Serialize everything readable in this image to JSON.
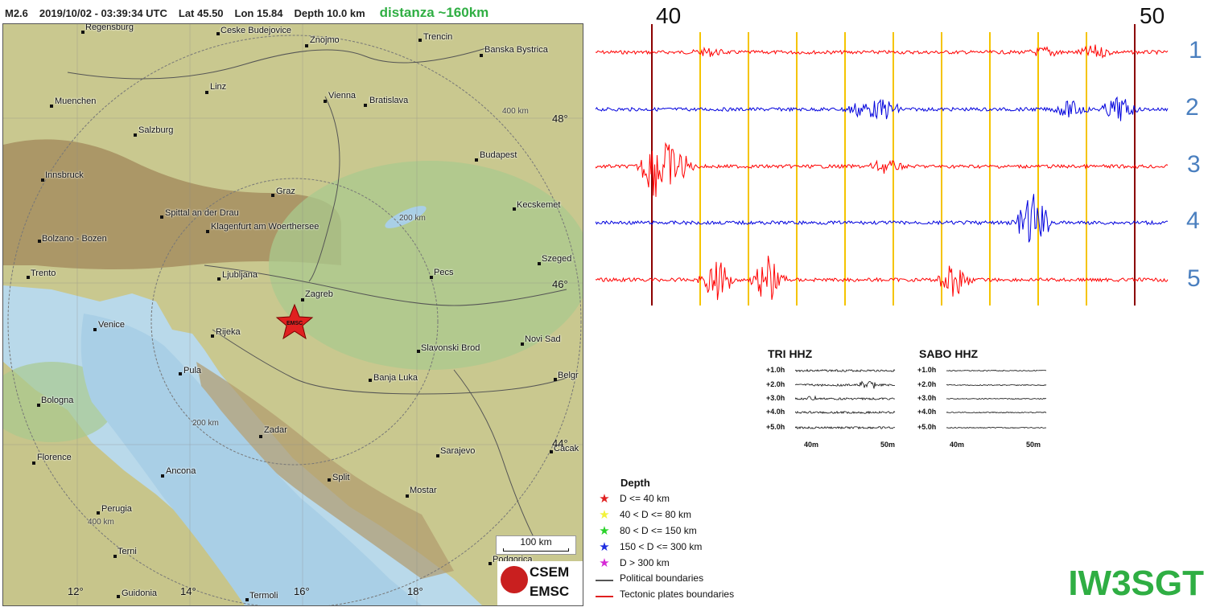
{
  "header": {
    "magnitude": "M2.6",
    "datetime": "2019/10/02 - 03:39:34 UTC",
    "lat": "Lat 45.50",
    "lon": "Lon  15.84",
    "depth": "Depth  10.0 km",
    "distance": "distanza ~160km"
  },
  "map": {
    "cities": [
      {
        "name": "Regensburg"
      },
      {
        "name": "Ceske Budejovice"
      },
      {
        "name": "Znojmo"
      },
      {
        "name": "Trencin"
      },
      {
        "name": "Banska Bystrica"
      },
      {
        "name": "Linz"
      },
      {
        "name": "Vienna"
      },
      {
        "name": "Bratislava"
      },
      {
        "name": "Muenchen"
      },
      {
        "name": "Salzburg"
      },
      {
        "name": "Budapest"
      },
      {
        "name": "Innsbruck"
      },
      {
        "name": "Graz"
      },
      {
        "name": "Kecskemet"
      },
      {
        "name": "Spittal an der Drau"
      },
      {
        "name": "Klagenfurt am Woerthersee"
      },
      {
        "name": "Bolzano - Bozen"
      },
      {
        "name": "Szeged"
      },
      {
        "name": "Trento"
      },
      {
        "name": "Ljubljana"
      },
      {
        "name": "Pecs"
      },
      {
        "name": "Zagreb"
      },
      {
        "name": "Venice"
      },
      {
        "name": "Rijeka"
      },
      {
        "name": "Novi Sad"
      },
      {
        "name": "Slavonski Brod"
      },
      {
        "name": "Pula"
      },
      {
        "name": "Banja Luka"
      },
      {
        "name": "Belgr"
      },
      {
        "name": "Bologna"
      },
      {
        "name": "Zadar"
      },
      {
        "name": "Sarajevo"
      },
      {
        "name": "Florence"
      },
      {
        "name": "Cacak"
      },
      {
        "name": "Ancona"
      },
      {
        "name": "Split"
      },
      {
        "name": "Mostar"
      },
      {
        "name": "Perugia"
      },
      {
        "name": "Terni"
      },
      {
        "name": "Podgorica"
      },
      {
        "name": "Guidonia"
      },
      {
        "name": "Termoli"
      }
    ],
    "lat_labels": [
      "48°",
      "46°",
      "44°"
    ],
    "lon_labels": [
      "12°",
      "14°",
      "16°",
      "18°"
    ],
    "ring_labels": [
      "400 km",
      "200 km",
      "200 km",
      "400 km"
    ],
    "epicenter_label": "EMSC",
    "scale": "100 km",
    "logo_top": "CSEM",
    "logo_bottom": "EMSC"
  },
  "seismogram": {
    "x_labels": [
      "40",
      "50"
    ],
    "trace_numbers": [
      "1",
      "2",
      "3",
      "4",
      "5"
    ],
    "colors": {
      "red": "#ff0000",
      "blue": "#0000dd",
      "marker": "#f5c400",
      "hour": "#8b0000"
    }
  },
  "mini_panels": [
    {
      "title": "TRI HHZ",
      "rows": [
        "+1.0h",
        "+2.0h",
        "+3.0h",
        "+4.0h",
        "+5.0h"
      ],
      "x_labels": [
        "40m",
        "50m"
      ]
    },
    {
      "title": "SABO HHZ",
      "rows": [
        "+1.0h",
        "+2.0h",
        "+3.0h",
        "+4.0h",
        "+5.0h"
      ],
      "x_labels": [
        "40m",
        "50m"
      ]
    }
  ],
  "legend": {
    "title": "Depth",
    "items": [
      {
        "label": "D <= 40 km",
        "color": "#e02020",
        "icon": "star"
      },
      {
        "label": "40 < D <= 80 km",
        "color": "#f2f23a",
        "icon": "star"
      },
      {
        "label": "80 < D <= 150 km",
        "color": "#2ad22a",
        "icon": "star"
      },
      {
        "label": "150 < D <= 300 km",
        "color": "#1e2ee0",
        "icon": "star"
      },
      {
        "label": "D > 300 km",
        "color": "#d52ad5",
        "icon": "star"
      },
      {
        "label": "Political boundaries",
        "color": "#555555",
        "icon": "line"
      },
      {
        "label": "Tectonic plates boundaries",
        "color": "#e02020",
        "icon": "line"
      }
    ]
  },
  "callsign": "IW3SGT"
}
